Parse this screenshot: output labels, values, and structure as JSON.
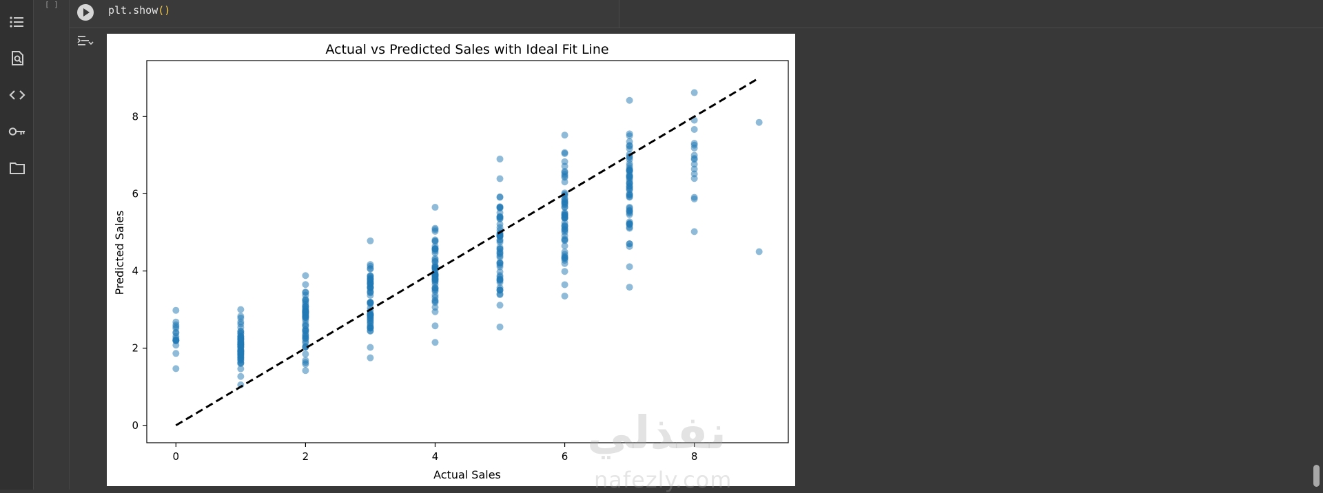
{
  "notebook": {
    "execution_count": "[ ]",
    "code_line": "plt.show",
    "code_parens": "()",
    "sidebar_icons": [
      "table-of-contents-icon",
      "find-replace-icon",
      "code-snippets-icon",
      "secrets-key-icon",
      "files-folder-icon"
    ]
  },
  "watermark": {
    "arabic": "نفذلي",
    "url": "nafezly.com"
  },
  "chart_data": {
    "type": "scatter",
    "title": "Actual vs Predicted Sales with Ideal Fit Line",
    "xlabel": "Actual Sales",
    "ylabel": "Predicted Sales",
    "xlim": [
      -0.45,
      9.45
    ],
    "ylim": [
      -0.45,
      9.45
    ],
    "xticks": [
      0,
      2,
      4,
      6,
      8
    ],
    "yticks": [
      0,
      2,
      4,
      6,
      8
    ],
    "grid": false,
    "point_color": "#1f77b4",
    "point_alpha": 0.5,
    "points_summary": [
      {
        "x": 0,
        "y_min": 1.47,
        "y_max": 2.98
      },
      {
        "x": 1,
        "y_min": 1.05,
        "y_max": 3.0
      },
      {
        "x": 2,
        "y_min": 1.42,
        "y_max": 3.88
      },
      {
        "x": 3,
        "y_min": 1.75,
        "y_max": 4.78
      },
      {
        "x": 4,
        "y_min": 2.15,
        "y_max": 5.65
      },
      {
        "x": 5,
        "y_min": 2.55,
        "y_max": 6.9
      },
      {
        "x": 6,
        "y_min": 3.35,
        "y_max": 7.52
      },
      {
        "x": 7,
        "y_min": 3.58,
        "y_max": 8.42
      },
      {
        "x": 8,
        "y_min": 5.02,
        "y_max": 8.62
      },
      {
        "x": 9,
        "y_min": 4.5,
        "y_max": 7.85
      }
    ],
    "ideal_line": {
      "style": "dashed",
      "color": "#000000",
      "x": [
        0,
        9
      ],
      "y": [
        0,
        9
      ]
    }
  }
}
